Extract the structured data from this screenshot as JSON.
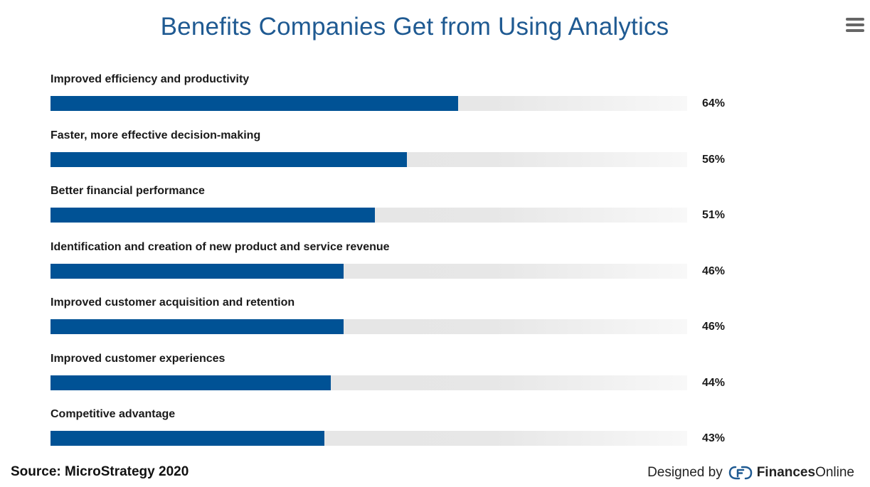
{
  "chart_data": {
    "type": "bar",
    "orientation": "horizontal",
    "title": "Benefits Companies Get from Using Analytics",
    "categories": [
      "Improved efficiency and productivity",
      "Faster, more effective decision-making",
      "Better financial performance",
      "Identification and creation of new product and service revenue",
      "Improved customer acquisition and retention",
      "Improved customer experiences",
      "Competitive advantage"
    ],
    "values": [
      64,
      56,
      51,
      46,
      46,
      44,
      43
    ],
    "value_labels": [
      "64%",
      "56%",
      "51%",
      "46%",
      "46%",
      "44%",
      "43%"
    ],
    "xlim": [
      0,
      100
    ],
    "xlabel": "",
    "ylabel": "",
    "grid": false,
    "colors": {
      "bar": "#005295",
      "track": "#e6e6e6",
      "title": "#1f5a92"
    }
  },
  "footer": {
    "source": "Source: MicroStrategy 2020",
    "designed_by": "Designed by",
    "brand_bold": "Finances",
    "brand_light": "Online"
  },
  "menu": {
    "icon": "hamburger-menu-icon"
  }
}
